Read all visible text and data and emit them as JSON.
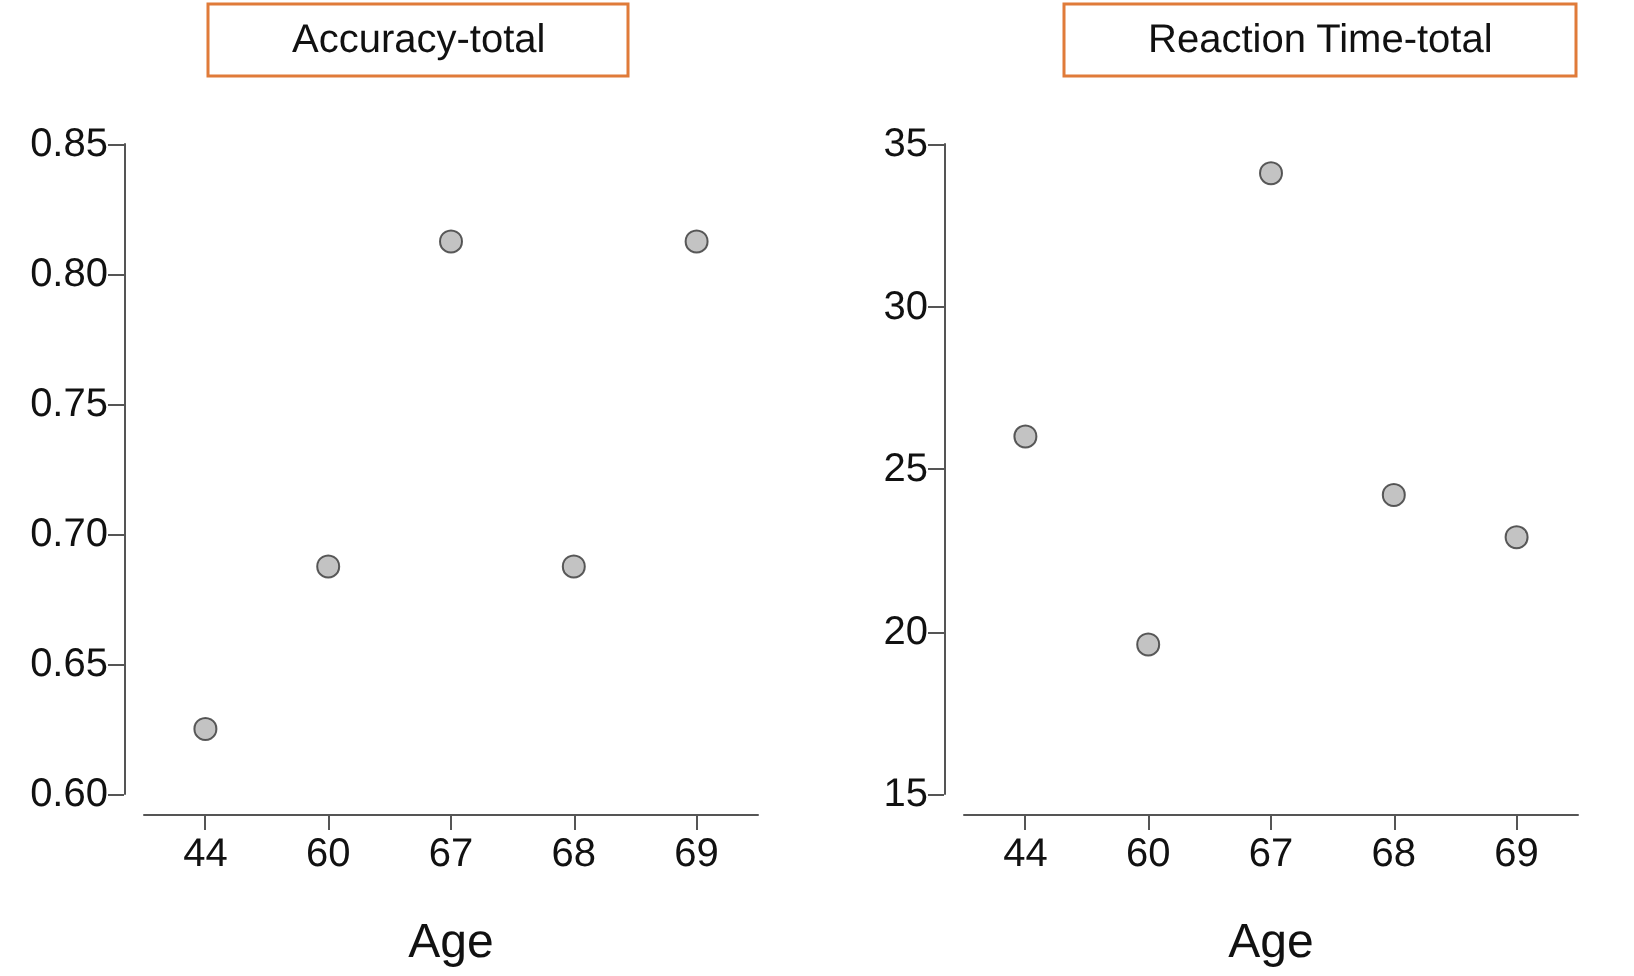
{
  "chart_data": [
    {
      "type": "scatter",
      "title": "Accuracy-total",
      "xlabel": "Age",
      "categories": [
        "44",
        "60",
        "67",
        "68",
        "69"
      ],
      "values": [
        0.625,
        0.6875,
        0.8125,
        0.6875,
        0.8125
      ],
      "color": "#b4b4b4",
      "ylim": [
        0.6,
        0.85
      ],
      "yticks": [
        {
          "value": 0.6,
          "label": "0.60"
        },
        0.65,
        {
          "value": 0.7,
          "label": "0.70"
        },
        0.75,
        {
          "value": 0.8,
          "label": "0.80"
        },
        0.85
      ],
      "grid": false,
      "marker": "circle"
    },
    {
      "type": "scatter",
      "title": "Reaction Time-total",
      "xlabel": "Age",
      "categories": [
        "44",
        "60",
        "67",
        "68",
        "69"
      ],
      "values": [
        26,
        19.6,
        34.1,
        24.2,
        22.9
      ],
      "color": "#b4b4b4",
      "ylim": [
        15,
        35
      ],
      "yticks": [
        15,
        20,
        25,
        30,
        35
      ],
      "grid": false,
      "marker": "circle"
    }
  ]
}
